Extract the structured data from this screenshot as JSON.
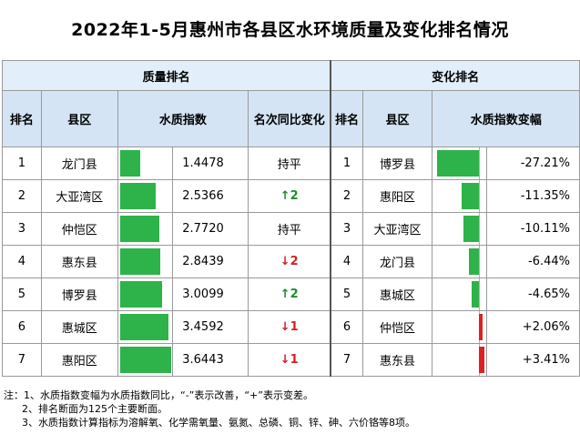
{
  "title": "2022年1-5月惠州市各县区水环境质量及变化排名情况",
  "quality_header": "质量排名",
  "change_header": "变化排名",
  "quality_columns": [
    "排名",
    "县区",
    "水质指数",
    "名次同比变化"
  ],
  "change_columns": [
    "排名",
    "县区",
    "水质指数变幅"
  ],
  "quality_rows": [
    {
      "rank": "1",
      "district": "龙门县",
      "index": 1.4478,
      "index_text": "1.4478",
      "change": "持平",
      "dir": "flat"
    },
    {
      "rank": "2",
      "district": "大亚湾区",
      "index": 2.5366,
      "index_text": "2.5366",
      "change": "↑2",
      "dir": "up"
    },
    {
      "rank": "3",
      "district": "仲恺区",
      "index": 2.772,
      "index_text": "2.7720",
      "change": "持平",
      "dir": "flat"
    },
    {
      "rank": "4",
      "district": "惠东县",
      "index": 2.8439,
      "index_text": "2.8439",
      "change": "↓2",
      "dir": "down"
    },
    {
      "rank": "5",
      "district": "博罗县",
      "index": 3.0099,
      "index_text": "3.0099",
      "change": "↑2",
      "dir": "up"
    },
    {
      "rank": "6",
      "district": "惠城区",
      "index": 3.4592,
      "index_text": "3.4592",
      "change": "↓1",
      "dir": "down"
    },
    {
      "rank": "7",
      "district": "惠阳区",
      "index": 3.6443,
      "index_text": "3.6443",
      "change": "↓1",
      "dir": "down"
    }
  ],
  "change_rows": [
    {
      "rank": "1",
      "district": "博罗县",
      "value": -27.21,
      "text": "-27.21%"
    },
    {
      "rank": "2",
      "district": "惠阳区",
      "value": -11.35,
      "text": "-11.35%"
    },
    {
      "rank": "3",
      "district": "大亚湾区",
      "value": -10.11,
      "text": "-10.11%"
    },
    {
      "rank": "4",
      "district": "龙门县",
      "value": -6.44,
      "text": "-6.44%"
    },
    {
      "rank": "5",
      "district": "惠城区",
      "value": -4.65,
      "text": "-4.65%"
    },
    {
      "rank": "6",
      "district": "仲恺区",
      "value": 2.06,
      "text": "+2.06%"
    },
    {
      "rank": "7",
      "district": "惠东县",
      "value": 3.41,
      "text": "+3.41%"
    }
  ],
  "colors": {
    "good": "#2db34a",
    "bad": "#e02020",
    "header_bg": "#d4e4f4"
  },
  "notes": [
    "注：1、水质指数变幅为水质指数同比，“-”表示改善，“+”表示变差。",
    "2、排名断面为125个主要断面。",
    "3、水质指数计算指标为溶解氧、化学需氧量、氨氮、总磷、铜、锌、砷、六价铬等8项。"
  ]
}
